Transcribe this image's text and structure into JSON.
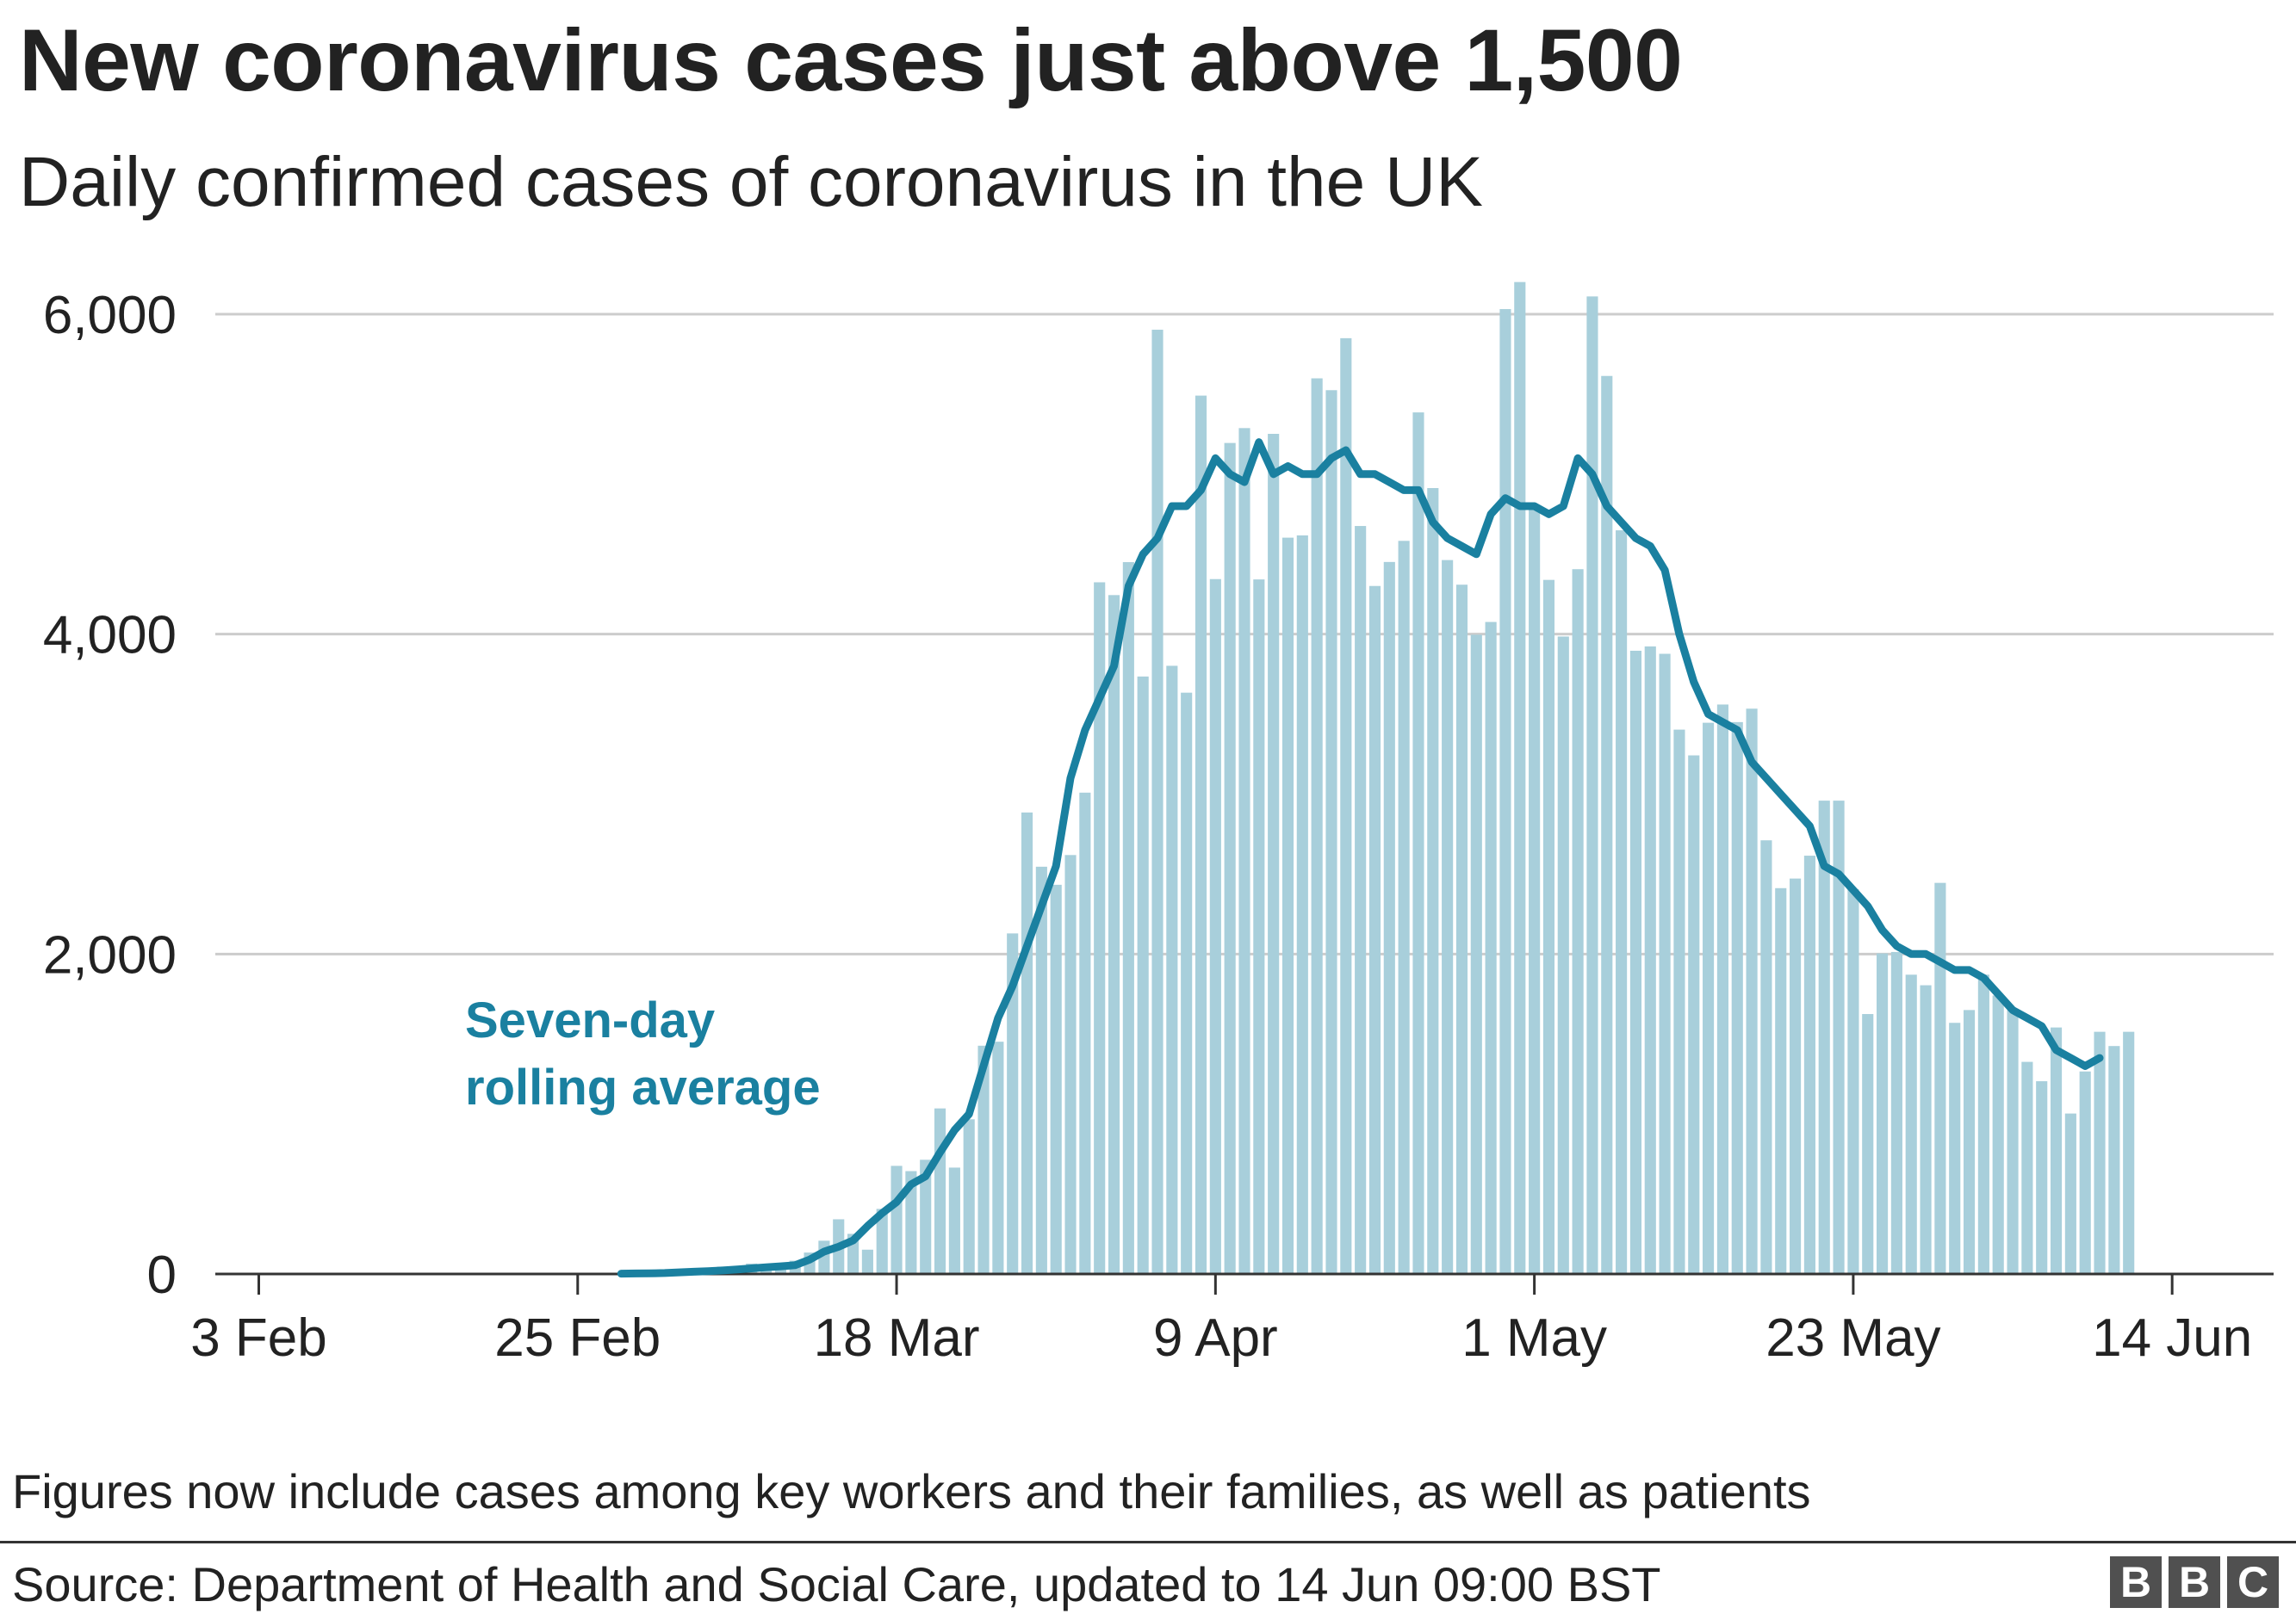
{
  "title": "New coronavirus cases just above 1,500",
  "subtitle": "Daily confirmed cases of coronavirus in the UK",
  "note": "Figures now include cases among key workers and their families, as well as patients",
  "source": "Source: Department of Health and Social Care, updated to 14 Jun 09:00 BST",
  "logo": [
    "B",
    "B",
    "C"
  ],
  "colors": {
    "bars": "#a8cfdb",
    "line": "#1a80a0",
    "grid": "#cccccc",
    "text": "#222222"
  },
  "chart_data": {
    "type": "bar",
    "xlabel": "",
    "ylabel": "",
    "ylim": [
      0,
      6000
    ],
    "yticks": [
      0,
      2000,
      4000,
      6000
    ],
    "ytick_labels": [
      "0",
      "2,000",
      "4,000",
      "6,000"
    ],
    "xticks": [
      "2020-02-03",
      "2020-02-25",
      "2020-03-18",
      "2020-04-09",
      "2020-05-01",
      "2020-05-23",
      "2020-06-14"
    ],
    "xtick_labels": [
      "3 Feb",
      "25 Feb",
      "18 Mar",
      "9 Apr",
      "1 May",
      "23 May",
      "14 Jun"
    ],
    "x_range": [
      "2020-01-31",
      "2020-06-21"
    ],
    "grid": true,
    "bar_start_date": "2020-03-01",
    "series": [
      {
        "name": "Daily confirmed cases",
        "type": "bar",
        "start_date": "2020-03-01",
        "values": [
          12,
          4,
          11,
          34,
          29,
          46,
          46,
          65,
          50,
          52,
          83,
          134,
          208,
          342,
          251,
          152,
          407,
          676,
          643,
          714,
          1035,
          665,
          967,
          1427,
          1452,
          2129,
          2885,
          2546,
          2433,
          2619,
          3009,
          4324,
          4244,
          4450,
          3735,
          5903,
          3802,
          3634,
          5491,
          4344,
          5195,
          5288,
          4342,
          5252,
          4603,
          4617,
          5599,
          5525,
          5850,
          4676,
          4301,
          4451,
          4583,
          5386,
          4913,
          4463,
          4309,
          3996,
          4076,
          6032,
          6201,
          4806,
          4339,
          3985,
          4406,
          6111,
          5614,
          4649,
          3896,
          3923,
          3877,
          3403,
          3242,
          3446,
          3560,
          3450,
          3534,
          2711,
          2412,
          2472,
          2615,
          2959,
          2959,
          2405,
          1625,
          2004,
          2013,
          1871,
          1805,
          2445,
          1570,
          1650,
          1871,
          1741,
          1650,
          1326,
          1205,
          1541,
          1003,
          1266,
          1514,
          1425,
          1514
        ]
      },
      {
        "name": "Seven-day rolling average",
        "type": "line",
        "start_date": "2020-02-28",
        "values": [
          2,
          3,
          4,
          6,
          10,
          14,
          18,
          22,
          28,
          35,
          42,
          48,
          55,
          90,
          140,
          170,
          210,
          300,
          380,
          450,
          560,
          610,
          760,
          900,
          1000,
          1300,
          1600,
          1800,
          2050,
          2300,
          2550,
          3100,
          3400,
          3600,
          3800,
          4300,
          4500,
          4600,
          4800,
          4800,
          4900,
          5100,
          5000,
          4950,
          5200,
          5000,
          5050,
          5000,
          5000,
          5100,
          5150,
          5000,
          5000,
          4950,
          4900,
          4900,
          4700,
          4600,
          4550,
          4500,
          4750,
          4850,
          4800,
          4800,
          4750,
          4800,
          5100,
          5000,
          4800,
          4700,
          4600,
          4550,
          4400,
          4000,
          3700,
          3500,
          3450,
          3400,
          3200,
          3100,
          3000,
          2900,
          2800,
          2550,
          2500,
          2400,
          2300,
          2150,
          2050,
          2000,
          2000,
          1950,
          1900,
          1900,
          1850,
          1750,
          1650,
          1600,
          1550,
          1400,
          1350,
          1300,
          1350
        ]
      }
    ],
    "annotations": [
      "Seven-day",
      "rolling average"
    ]
  }
}
